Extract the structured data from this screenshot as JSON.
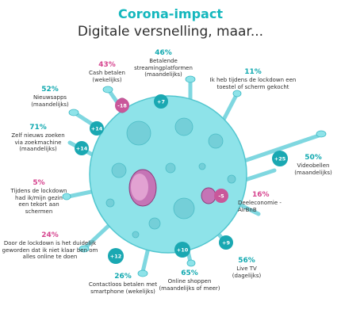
{
  "header": {
    "title": "Corona-impact",
    "subtitle": "Digitale versnelling, maar..."
  },
  "colors": {
    "teal": "#14b7bd",
    "virus_body": "#8ee3e9",
    "spike": "#7fd7e0",
    "badge_teal": "#1aa8b2",
    "badge_pink": "#c9579a",
    "pink": "#d6448f",
    "dark_blue": "#1c5c86"
  },
  "items": {
    "cash": {
      "pct": "43%",
      "label": "Cash betalen\n(wekelijks)",
      "change": "-18"
    },
    "streaming": {
      "pct": "46%",
      "label": "Betalende\nstreamingplatformen\n(maandelijks)",
      "change": "+7"
    },
    "newdevice": {
      "pct": "11%",
      "label": "Ik heb tijdens de lockdown een\ntoestel of scherm gekocht"
    },
    "newsapps": {
      "pct": "52%",
      "label": "Nieuwsapps\n(maandelijks)",
      "change": "+14"
    },
    "searchengine": {
      "pct": "71%",
      "label": "Zelf nieuws zoeken\nvia zoekmachine\n(maandelijks)",
      "change": "+14"
    },
    "videocall": {
      "pct": "50%",
      "label": "Videobellen\n(maandelijks)",
      "change": "+25"
    },
    "shortage": {
      "pct": "5%",
      "label": "Tijdens de lockdown\nhad ik/mijn gezin\neen tekort aan schermen"
    },
    "sharing": {
      "pct": "16%",
      "label": "Deeleconomie -\nAirBnB",
      "change": "-5"
    },
    "overwhelmed": {
      "pct": "24%",
      "label": "Door de lockdown is het duidelijk\ngeworden dat ik niet klaar ben om\nalles online te doen"
    },
    "contactless": {
      "pct": "26%",
      "label": "Contactloos betalen met\nsmartphone (wekelijks)",
      "change": "+12"
    },
    "shopping": {
      "pct": "65%",
      "label": "Online shoppen\n(maandelijks of meer)",
      "change": "+10"
    },
    "livetv": {
      "pct": "56%",
      "label": "Live TV\n(dagelijks)",
      "change": "+9"
    }
  }
}
